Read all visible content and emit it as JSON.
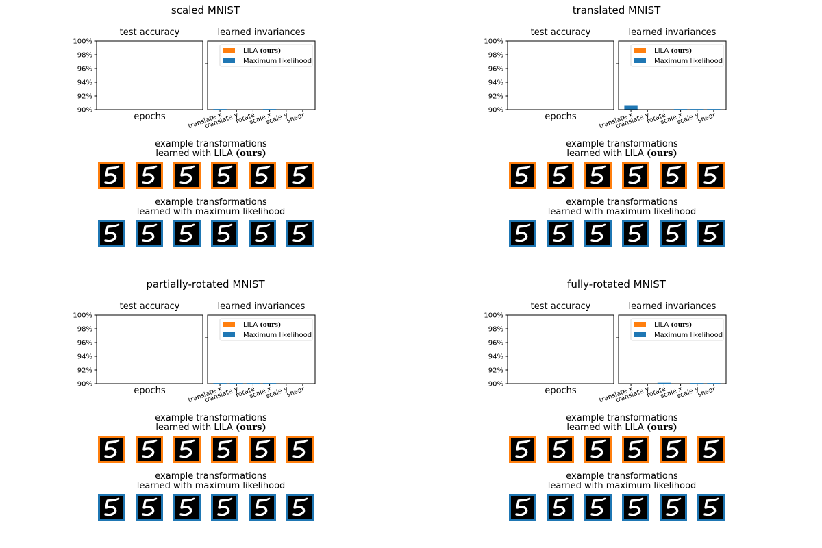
{
  "colors": {
    "lila": "#ff7f0e",
    "ml": "#1f77b4",
    "digit_bg": "#000000",
    "digit_fg": "#ffffff"
  },
  "common": {
    "accuracy_subtitle": "test accuracy",
    "invariance_subtitle": "learned invariances",
    "epochs_label": "epochs",
    "legend": [
      "LILA (ours)",
      "Maximum likelihood"
    ],
    "example_lila": {
      "line1": "example transformations",
      "line2_prefix": "learned with LILA ",
      "line2_bold": "(ours)"
    },
    "example_ml": {
      "line1": "example transformations",
      "line2": "learned with maximum likelihood"
    },
    "thumbnail_icon": "mnist-digit-5-icon",
    "thumbnails_per_row": 6
  },
  "chart_data": [
    {
      "type": "bar",
      "title": "scaled MNIST",
      "accuracy": {
        "ylim": [
          0.9,
          1.0
        ],
        "yticks": [
          "90%",
          "92%",
          "94%",
          "96%",
          "98%",
          "100%"
        ],
        "xlabel": "epochs",
        "series": []
      },
      "categories": [
        "translate x",
        "translate y",
        "rotate",
        "scale x",
        "scale y",
        "shear"
      ],
      "ylim": [
        0,
        1
      ],
      "series": [
        {
          "name": "LILA (ours)",
          "values": [
            0,
            0,
            0,
            0,
            0,
            0
          ]
        },
        {
          "name": "Maximum likelihood",
          "values": [
            0.004,
            0,
            0,
            0.004,
            0,
            0
          ]
        }
      ]
    },
    {
      "type": "bar",
      "title": "translated MNIST",
      "accuracy": {
        "ylim": [
          0.9,
          1.0
        ],
        "yticks": [
          "90%",
          "92%",
          "94%",
          "96%",
          "98%",
          "100%"
        ],
        "xlabel": "epochs",
        "series": []
      },
      "categories": [
        "translate x",
        "translate y",
        "rotate",
        "scale x",
        "scale y",
        "shear"
      ],
      "ylim": [
        0,
        1
      ],
      "series": [
        {
          "name": "LILA (ours)",
          "values": [
            0,
            0,
            0,
            0,
            0,
            0
          ]
        },
        {
          "name": "Maximum likelihood",
          "values": [
            0.05,
            0,
            0,
            0.004,
            0.004,
            0.004
          ]
        }
      ]
    },
    {
      "type": "bar",
      "title": "partially-rotated MNIST",
      "accuracy": {
        "ylim": [
          0.9,
          1.0
        ],
        "yticks": [
          "90%",
          "92%",
          "94%",
          "96%",
          "98%",
          "100%"
        ],
        "xlabel": "epochs",
        "series": []
      },
      "categories": [
        "translate x",
        "translate y",
        "rotate",
        "scale x",
        "scale y",
        "shear"
      ],
      "ylim": [
        0,
        1
      ],
      "series": [
        {
          "name": "LILA (ours)",
          "values": [
            0,
            0,
            0,
            0,
            0,
            0
          ]
        },
        {
          "name": "Maximum likelihood",
          "values": [
            0.004,
            0.004,
            0.004,
            0.004,
            0,
            0
          ]
        }
      ]
    },
    {
      "type": "bar",
      "title": "fully-rotated MNIST",
      "accuracy": {
        "ylim": [
          0.9,
          1.0
        ],
        "yticks": [
          "90%",
          "92%",
          "94%",
          "96%",
          "98%",
          "100%"
        ],
        "xlabel": "epochs",
        "series": []
      },
      "categories": [
        "translate x",
        "translate y",
        "rotate",
        "scale x",
        "scale y",
        "shear"
      ],
      "ylim": [
        0,
        1
      ],
      "series": [
        {
          "name": "LILA (ours)",
          "values": [
            0,
            0,
            0,
            0,
            0,
            0
          ]
        },
        {
          "name": "Maximum likelihood",
          "values": [
            0,
            0,
            0.008,
            0,
            0.004,
            0.004
          ]
        }
      ]
    }
  ]
}
